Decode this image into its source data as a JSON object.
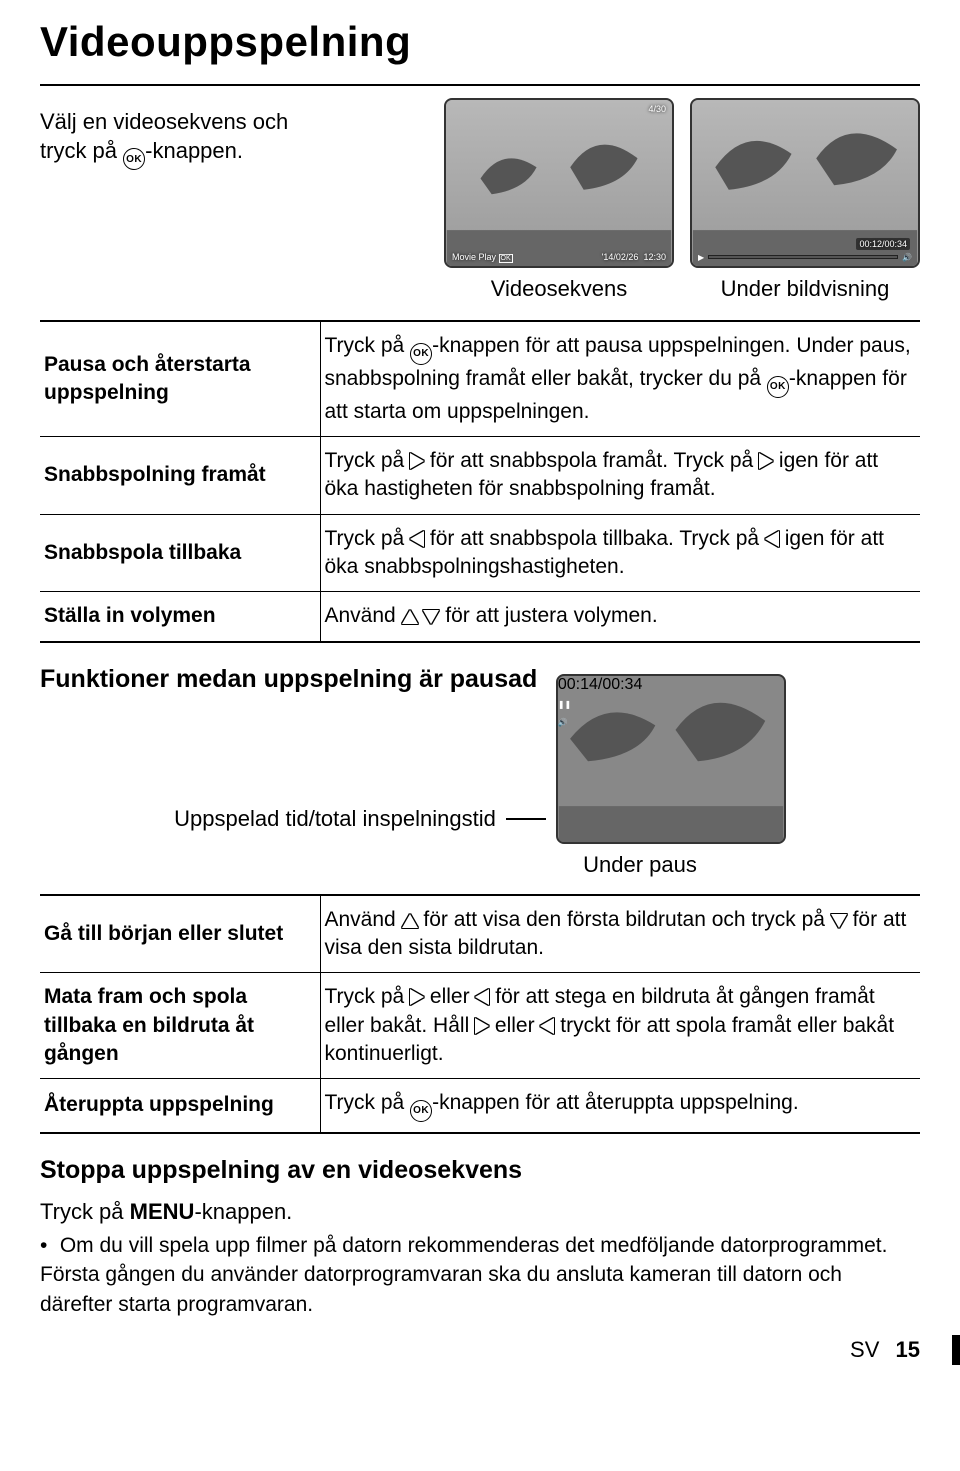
{
  "page_title": "Videouppspelning",
  "intro_line1": "Välj en videosekvens och",
  "intro_line2": "tryck på ",
  "intro_line3": "-knappen.",
  "ok_label": "OK",
  "screenshots": {
    "left": {
      "counter": "4/30",
      "movie_play": "Movie Play",
      "date": "'14/02/26",
      "time": "12:30"
    },
    "right": {
      "elapsed": "00:12/00:34"
    }
  },
  "caption_left": "Videosekvens",
  "caption_right": "Under bildvisning",
  "table1": [
    {
      "label": "Pausa och återstarta uppspelning",
      "desc_parts": [
        "Tryck på ",
        "OK",
        "-knappen för att pausa uppspelningen. Under paus, snabbspolning framåt eller bakåt, trycker du på ",
        "OK",
        "-knappen för att starta om uppspelningen."
      ]
    },
    {
      "label": "Snabbspolning framåt",
      "desc_parts": [
        "Tryck på ",
        "R",
        " för att snabbspola framåt. Tryck på ",
        "R",
        " igen för att öka hastigheten för snabbspolning framåt."
      ]
    },
    {
      "label": "Snabbspola tillbaka",
      "desc_parts": [
        "Tryck på ",
        "L",
        " för att snabbspola tillbaka. Tryck på ",
        "L",
        " igen för att öka snabbspolningshastigheten."
      ]
    },
    {
      "label": "Ställa in volymen",
      "desc_parts": [
        "Använd ",
        "U",
        " ",
        "D",
        " för att justera volymen."
      ]
    }
  ],
  "subheading1": "Funktioner medan uppspelning är pausad",
  "annot_label": "Uppspelad tid/total inspelningstid",
  "annot_time": "00:14/00:34",
  "under_paus": "Under paus",
  "table2": [
    {
      "label": "Gå till början eller slutet",
      "desc_parts": [
        "Använd ",
        "U",
        " för att visa den första bildrutan och tryck på ",
        "D",
        " för att visa den sista bildrutan."
      ]
    },
    {
      "label": "Mata fram och spola tillbaka en bildruta åt gången",
      "desc_parts": [
        "Tryck på ",
        "R",
        " eller ",
        "L",
        " för att stega en bildruta åt gången framåt eller bakåt. Håll ",
        "R",
        " eller ",
        "L",
        " tryckt för att spola framåt eller bakåt kontinuerligt."
      ]
    },
    {
      "label": "Återuppta uppspelning",
      "desc_parts": [
        "Tryck på ",
        "OK",
        "-knappen för att återuppta uppspelning."
      ]
    }
  ],
  "stop_heading": "Stoppa uppspelning av en videosekvens",
  "stop_line_a": "Tryck på ",
  "stop_menu": "MENU",
  "stop_line_b": "-knappen.",
  "bullet": "•",
  "note_text": "Om du vill spela upp filmer på datorn rekommenderas det medföljande datorprogrammet. Första gången du använder datorprogramvaran ska du ansluta kameran till datorn och därefter starta programvaran.",
  "footer_sv": "SV",
  "footer_page": "15"
}
